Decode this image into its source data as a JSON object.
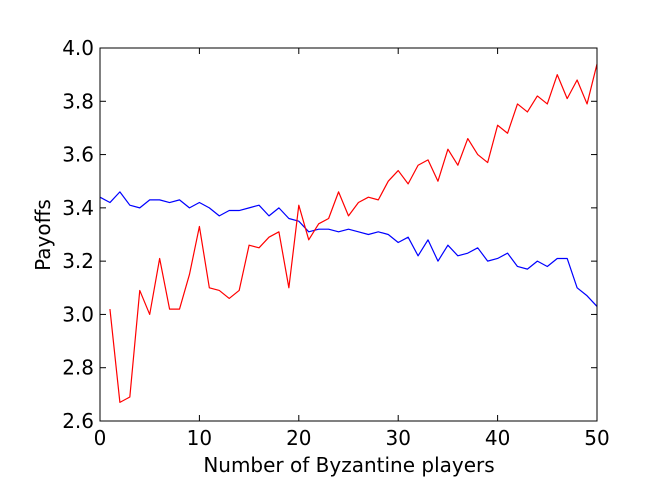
{
  "chart_data": {
    "type": "line",
    "title": "",
    "xlabel": "Number of Byzantine players",
    "ylabel": "Payoffs",
    "xlim": [
      0,
      50
    ],
    "ylim": [
      2.6,
      4.0
    ],
    "x_ticks": [
      0,
      10,
      20,
      30,
      40,
      50
    ],
    "y_ticks": [
      2.6,
      2.8,
      3.0,
      3.2,
      3.4,
      3.6,
      3.8,
      4.0
    ],
    "x_tick_labels": [
      "0",
      "10",
      "20",
      "30",
      "40",
      "50"
    ],
    "y_tick_labels": [
      "2.6",
      "2.8",
      "3.0",
      "3.2",
      "3.4",
      "3.6",
      "3.8",
      "4.0"
    ],
    "grid": false,
    "legend": "none",
    "series": [
      {
        "color": "#0000ff",
        "x": [
          0,
          1,
          2,
          3,
          4,
          5,
          6,
          7,
          8,
          9,
          10,
          11,
          12,
          13,
          14,
          15,
          16,
          17,
          18,
          19,
          20,
          21,
          22,
          23,
          24,
          25,
          26,
          27,
          28,
          29,
          30,
          31,
          32,
          33,
          34,
          35,
          36,
          37,
          38,
          39,
          40,
          41,
          42,
          43,
          44,
          45,
          46,
          47,
          48,
          49,
          50
        ],
        "y": [
          3.44,
          3.42,
          3.46,
          3.41,
          3.4,
          3.43,
          3.43,
          3.42,
          3.43,
          3.4,
          3.42,
          3.4,
          3.37,
          3.39,
          3.39,
          3.4,
          3.41,
          3.37,
          3.4,
          3.36,
          3.35,
          3.31,
          3.32,
          3.32,
          3.31,
          3.32,
          3.31,
          3.3,
          3.31,
          3.3,
          3.27,
          3.29,
          3.22,
          3.28,
          3.2,
          3.26,
          3.22,
          3.23,
          3.25,
          3.2,
          3.21,
          3.23,
          3.18,
          3.17,
          3.2,
          3.18,
          3.21,
          3.21,
          3.1,
          3.07,
          3.03
        ]
      },
      {
        "color": "#ff0000",
        "x": [
          1,
          2,
          3,
          4,
          5,
          6,
          7,
          8,
          9,
          10,
          11,
          12,
          13,
          14,
          15,
          16,
          17,
          18,
          19,
          20,
          21,
          22,
          23,
          24,
          25,
          26,
          27,
          28,
          29,
          30,
          31,
          32,
          33,
          34,
          35,
          36,
          37,
          38,
          39,
          40,
          41,
          42,
          43,
          44,
          45,
          46,
          47,
          48,
          49,
          50
        ],
        "y": [
          3.02,
          2.67,
          2.69,
          3.09,
          3.0,
          3.21,
          3.02,
          3.02,
          3.15,
          3.33,
          3.1,
          3.09,
          3.06,
          3.09,
          3.26,
          3.25,
          3.29,
          3.31,
          3.1,
          3.41,
          3.28,
          3.34,
          3.36,
          3.46,
          3.37,
          3.42,
          3.44,
          3.43,
          3.5,
          3.54,
          3.49,
          3.56,
          3.58,
          3.5,
          3.62,
          3.56,
          3.66,
          3.6,
          3.57,
          3.71,
          3.68,
          3.79,
          3.76,
          3.82,
          3.79,
          3.9,
          3.81,
          3.88,
          3.79,
          3.94
        ]
      }
    ]
  }
}
